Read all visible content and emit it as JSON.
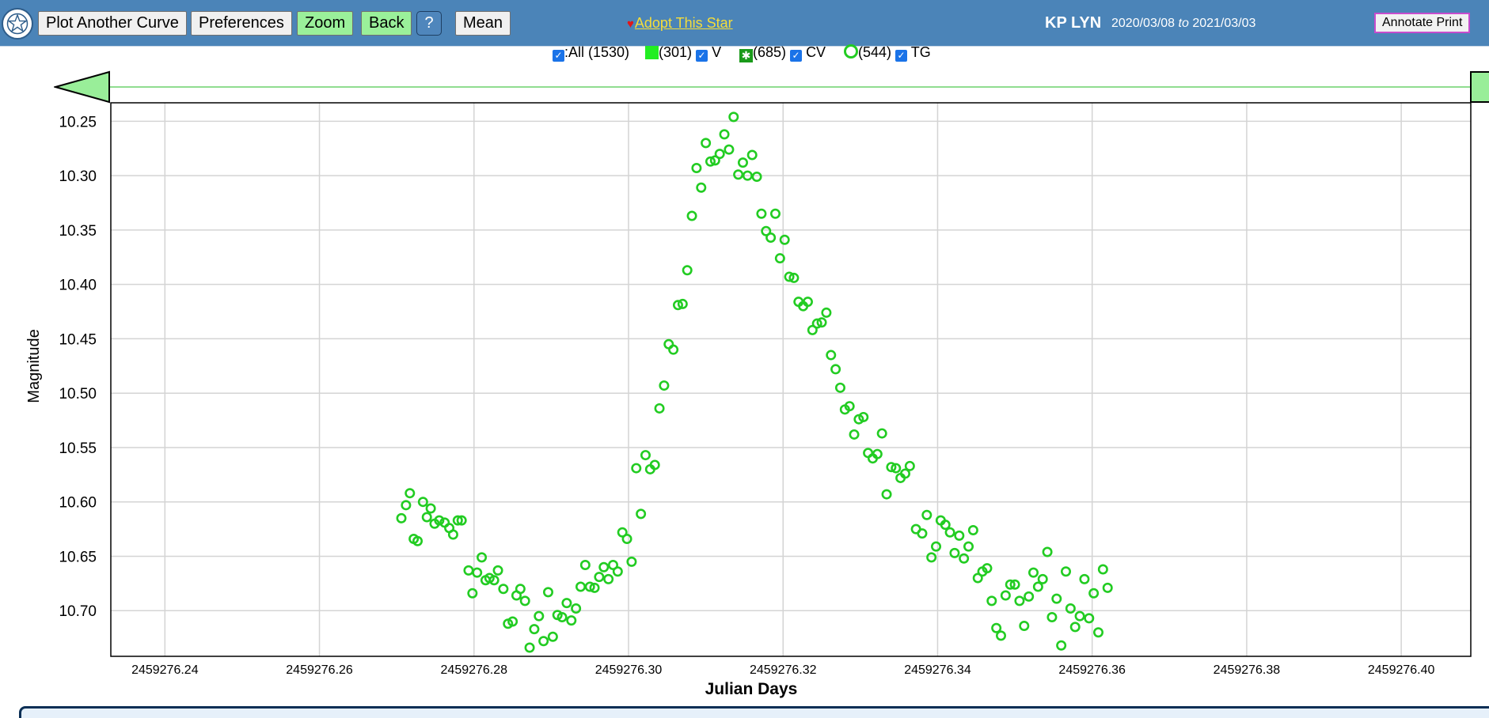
{
  "toolbar": {
    "plot_another_label": "Plot Another Curve",
    "preferences_label": "Preferences",
    "zoom_label": "Zoom",
    "back_label": "Back",
    "help_label": "?",
    "mean_label": "Mean",
    "adopt_label": "Adopt This Star",
    "star_name": "KP LYN",
    "date_from": "2020/03/08",
    "date_to_word": "to",
    "date_to": "2021/03/03",
    "annotate_label": "Annotate Print"
  },
  "legend": {
    "all_label": ":All (1530)",
    "v_count": "(301)",
    "v_label": "V",
    "cv_count": "(685)",
    "cv_label": "CV",
    "tg_count": "(544)",
    "tg_label": "TG"
  },
  "icons": {
    "logo": "aavso-star-logo-icon",
    "heart": "heart-icon",
    "left_arrow": "slider-left-arrow-icon",
    "right_arrow": "slider-right-arrow-icon"
  },
  "colors": {
    "toolbar_bg": "#4b84b8",
    "point_color": "#22cc22",
    "zoom_active": "#9af09a",
    "adopt_link": "#f5dd3a"
  },
  "chart_data": {
    "type": "scatter",
    "xlabel": "Julian Days",
    "ylabel": "Magnitude",
    "xlim": [
      2459276.233,
      2459276.409
    ],
    "ylim": [
      10.233,
      10.742
    ],
    "y_inverted": true,
    "grid": true,
    "x_ticks": [
      "2459276.24",
      "2459276.26",
      "2459276.28",
      "2459276.30",
      "2459276.32",
      "2459276.34",
      "2459276.36",
      "2459276.38",
      "2459276.40"
    ],
    "y_ticks": [
      "10.25",
      "10.30",
      "10.35",
      "10.40",
      "10.45",
      "10.50",
      "10.55",
      "10.60",
      "10.65",
      "10.70"
    ],
    "series": [
      {
        "name": "TG",
        "marker": "ring",
        "points": [
          [
            2459276.2706,
            10.615
          ],
          [
            2459276.2712,
            10.603
          ],
          [
            2459276.2717,
            10.592
          ],
          [
            2459276.2722,
            10.634
          ],
          [
            2459276.2727,
            10.636
          ],
          [
            2459276.2734,
            10.6
          ],
          [
            2459276.2739,
            10.614
          ],
          [
            2459276.2744,
            10.606
          ],
          [
            2459276.2749,
            10.62
          ],
          [
            2459276.2755,
            10.617
          ],
          [
            2459276.2762,
            10.619
          ],
          [
            2459276.2768,
            10.624
          ],
          [
            2459276.2773,
            10.63
          ],
          [
            2459276.2779,
            10.617
          ],
          [
            2459276.2784,
            10.617
          ],
          [
            2459276.2793,
            10.663
          ],
          [
            2459276.2798,
            10.684
          ],
          [
            2459276.2804,
            10.665
          ],
          [
            2459276.281,
            10.651
          ],
          [
            2459276.2815,
            10.672
          ],
          [
            2459276.282,
            10.67
          ],
          [
            2459276.2826,
            10.672
          ],
          [
            2459276.2831,
            10.663
          ],
          [
            2459276.2838,
            10.68
          ],
          [
            2459276.2844,
            10.712
          ],
          [
            2459276.285,
            10.71
          ],
          [
            2459276.2855,
            10.686
          ],
          [
            2459276.286,
            10.68
          ],
          [
            2459276.2866,
            10.691
          ],
          [
            2459276.2872,
            10.734
          ],
          [
            2459276.2878,
            10.717
          ],
          [
            2459276.2884,
            10.705
          ],
          [
            2459276.289,
            10.728
          ],
          [
            2459276.2896,
            10.683
          ],
          [
            2459276.2902,
            10.724
          ],
          [
            2459276.2908,
            10.704
          ],
          [
            2459276.2914,
            10.706
          ],
          [
            2459276.292,
            10.693
          ],
          [
            2459276.2926,
            10.709
          ],
          [
            2459276.2932,
            10.698
          ],
          [
            2459276.2938,
            10.678
          ],
          [
            2459276.2944,
            10.658
          ],
          [
            2459276.295,
            10.678
          ],
          [
            2459276.2956,
            10.679
          ],
          [
            2459276.2962,
            10.669
          ],
          [
            2459276.2968,
            10.66
          ],
          [
            2459276.2974,
            10.671
          ],
          [
            2459276.298,
            10.658
          ],
          [
            2459276.2986,
            10.664
          ],
          [
            2459276.2992,
            10.628
          ],
          [
            2459276.2998,
            10.634
          ],
          [
            2459276.3004,
            10.655
          ],
          [
            2459276.301,
            10.569
          ],
          [
            2459276.3016,
            10.611
          ],
          [
            2459276.3022,
            10.557
          ],
          [
            2459276.3028,
            10.57
          ],
          [
            2459276.3034,
            10.566
          ],
          [
            2459276.304,
            10.514
          ],
          [
            2459276.3046,
            10.493
          ],
          [
            2459276.3052,
            10.455
          ],
          [
            2459276.3058,
            10.46
          ],
          [
            2459276.3064,
            10.419
          ],
          [
            2459276.307,
            10.418
          ],
          [
            2459276.3076,
            10.387
          ],
          [
            2459276.3082,
            10.337
          ],
          [
            2459276.3088,
            10.293
          ],
          [
            2459276.3094,
            10.311
          ],
          [
            2459276.31,
            10.27
          ],
          [
            2459276.3106,
            10.287
          ],
          [
            2459276.3112,
            10.286
          ],
          [
            2459276.3118,
            10.28
          ],
          [
            2459276.3124,
            10.262
          ],
          [
            2459276.313,
            10.276
          ],
          [
            2459276.3136,
            10.246
          ],
          [
            2459276.3142,
            10.299
          ],
          [
            2459276.3148,
            10.288
          ],
          [
            2459276.3154,
            10.3
          ],
          [
            2459276.316,
            10.281
          ],
          [
            2459276.3166,
            10.301
          ],
          [
            2459276.3172,
            10.335
          ],
          [
            2459276.3178,
            10.351
          ],
          [
            2459276.3184,
            10.357
          ],
          [
            2459276.319,
            10.335
          ],
          [
            2459276.3196,
            10.376
          ],
          [
            2459276.3202,
            10.359
          ],
          [
            2459276.3208,
            10.393
          ],
          [
            2459276.3214,
            10.394
          ],
          [
            2459276.322,
            10.416
          ],
          [
            2459276.3226,
            10.42
          ],
          [
            2459276.3232,
            10.416
          ],
          [
            2459276.3238,
            10.442
          ],
          [
            2459276.3244,
            10.436
          ],
          [
            2459276.325,
            10.435
          ],
          [
            2459276.3256,
            10.426
          ],
          [
            2459276.3262,
            10.465
          ],
          [
            2459276.3268,
            10.478
          ],
          [
            2459276.3274,
            10.495
          ],
          [
            2459276.328,
            10.515
          ],
          [
            2459276.3286,
            10.512
          ],
          [
            2459276.3292,
            10.538
          ],
          [
            2459276.3298,
            10.524
          ],
          [
            2459276.3304,
            10.522
          ],
          [
            2459276.331,
            10.555
          ],
          [
            2459276.3316,
            10.56
          ],
          [
            2459276.3322,
            10.556
          ],
          [
            2459276.3328,
            10.537
          ],
          [
            2459276.3334,
            10.593
          ],
          [
            2459276.334,
            10.568
          ],
          [
            2459276.3346,
            10.569
          ],
          [
            2459276.3352,
            10.578
          ],
          [
            2459276.3358,
            10.574
          ],
          [
            2459276.3364,
            10.567
          ],
          [
            2459276.3372,
            10.625
          ],
          [
            2459276.338,
            10.629
          ],
          [
            2459276.3386,
            10.612
          ],
          [
            2459276.3392,
            10.651
          ],
          [
            2459276.3398,
            10.641
          ],
          [
            2459276.3404,
            10.617
          ],
          [
            2459276.341,
            10.621
          ],
          [
            2459276.3416,
            10.628
          ],
          [
            2459276.3422,
            10.647
          ],
          [
            2459276.3428,
            10.631
          ],
          [
            2459276.3434,
            10.652
          ],
          [
            2459276.344,
            10.641
          ],
          [
            2459276.3446,
            10.626
          ],
          [
            2459276.3452,
            10.67
          ],
          [
            2459276.3458,
            10.664
          ],
          [
            2459276.3464,
            10.661
          ],
          [
            2459276.347,
            10.691
          ],
          [
            2459276.3476,
            10.716
          ],
          [
            2459276.3482,
            10.723
          ],
          [
            2459276.3488,
            10.686
          ],
          [
            2459276.3494,
            10.676
          ],
          [
            2459276.35,
            10.676
          ],
          [
            2459276.3506,
            10.691
          ],
          [
            2459276.3512,
            10.714
          ],
          [
            2459276.3518,
            10.687
          ],
          [
            2459276.3524,
            10.665
          ],
          [
            2459276.353,
            10.678
          ],
          [
            2459276.3536,
            10.671
          ],
          [
            2459276.3542,
            10.646
          ],
          [
            2459276.3548,
            10.706
          ],
          [
            2459276.3554,
            10.689
          ],
          [
            2459276.356,
            10.732
          ],
          [
            2459276.3566,
            10.664
          ],
          [
            2459276.3572,
            10.698
          ],
          [
            2459276.3578,
            10.715
          ],
          [
            2459276.3584,
            10.705
          ],
          [
            2459276.359,
            10.671
          ],
          [
            2459276.3596,
            10.707
          ],
          [
            2459276.3602,
            10.684
          ],
          [
            2459276.3608,
            10.72
          ],
          [
            2459276.3614,
            10.662
          ],
          [
            2459276.362,
            10.679
          ]
        ]
      }
    ]
  }
}
